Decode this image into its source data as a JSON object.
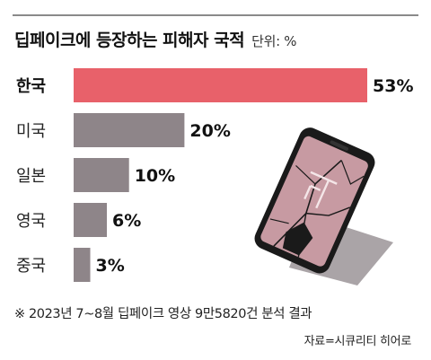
{
  "header": {
    "title": "딥페이크에 등장하는 피해자 국적",
    "unit": "단위: %"
  },
  "chart_data": {
    "type": "bar",
    "orientation": "horizontal",
    "title": "딥페이크에 등장하는 피해자 국적",
    "categories": [
      "한국",
      "미국",
      "일본",
      "영국",
      "중국"
    ],
    "values": [
      53,
      20,
      10,
      6,
      3
    ],
    "value_labels": [
      "53%",
      "20%",
      "10%",
      "6%",
      "3%"
    ],
    "highlight_index": 0,
    "highlight_color": "#e8616a",
    "bar_color": "#8e8589",
    "xlim": [
      0,
      53
    ],
    "grid": false,
    "legend": "none"
  },
  "footnote": "※ 2023년 7~8월 딥페이크 영상 9만5820건 분석 결과",
  "source": "자료=시큐리티 히어로",
  "illustration": {
    "icon": "cracked-smartphone-icon"
  }
}
